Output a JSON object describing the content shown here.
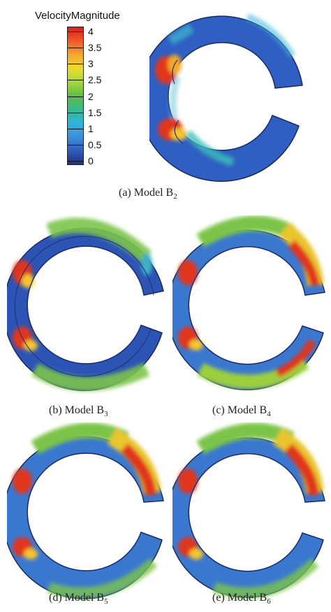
{
  "legend": {
    "title": "VelocityMagnitude",
    "labels": [
      "4",
      "3.5",
      "3",
      "2.5",
      "2",
      "1.5",
      "1",
      "0.5",
      "0"
    ]
  },
  "panels": [
    {
      "id": "a",
      "caption_prefix": "(a) Model B",
      "caption_sub": "2"
    },
    {
      "id": "b",
      "caption_prefix": "(b) Model B",
      "caption_sub": "3"
    },
    {
      "id": "c",
      "caption_prefix": "(c) Model B",
      "caption_sub": "4"
    },
    {
      "id": "d",
      "caption_prefix": "(d) Model B",
      "caption_sub": "5"
    },
    {
      "id": "e",
      "caption_prefix": "(e) Model B",
      "caption_sub": "6"
    }
  ]
}
